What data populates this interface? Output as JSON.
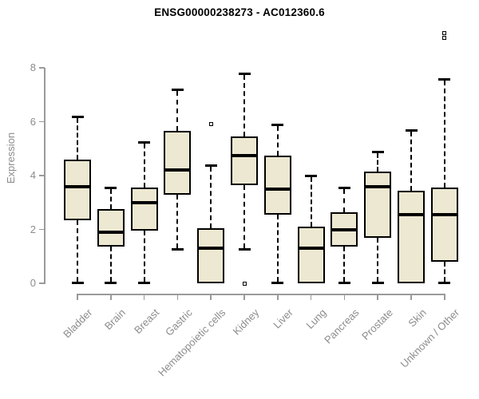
{
  "chart_data": {
    "type": "boxplot",
    "title": "ENSG00000238273 - AC012360.6",
    "ylabel": "Expression",
    "xlabel": "",
    "ylim": [
      0,
      8
    ],
    "yticks": [
      "0",
      "2",
      "4",
      "6",
      "8"
    ],
    "grid": false,
    "legend": null,
    "categories": [
      "Bladder",
      "Brain",
      "Breast",
      "Gastric",
      "Hematopoietic cells",
      "Kidney",
      "Liver",
      "Lung",
      "Pancreas",
      "Prostate",
      "Skin",
      "Unknown / Other"
    ],
    "series": [
      {
        "name": "Bladder",
        "whisker_low": 0,
        "q1": 2.35,
        "median": 3.6,
        "q3": 4.6,
        "whisker_high": 6.2,
        "outliers": []
      },
      {
        "name": "Brain",
        "whisker_low": 0,
        "q1": 1.35,
        "median": 1.9,
        "q3": 2.75,
        "whisker_high": 3.55,
        "outliers": []
      },
      {
        "name": "Breast",
        "whisker_low": 0,
        "q1": 1.95,
        "median": 3.0,
        "q3": 3.55,
        "whisker_high": 5.25,
        "outliers": []
      },
      {
        "name": "Gastric",
        "whisker_low": 1.25,
        "q1": 3.3,
        "median": 4.2,
        "q3": 5.65,
        "whisker_high": 7.2,
        "outliers": []
      },
      {
        "name": "Hematopoietic cells",
        "whisker_low": 0,
        "q1": 0,
        "median": 1.3,
        "q3": 2.05,
        "whisker_high": 4.4,
        "outliers": [
          5.9
        ]
      },
      {
        "name": "Kidney",
        "whisker_low": 1.25,
        "q1": 3.65,
        "median": 4.75,
        "q3": 5.45,
        "whisker_high": 7.8,
        "outliers": [
          0.0
        ]
      },
      {
        "name": "Liver",
        "whisker_low": 0,
        "q1": 2.55,
        "median": 3.5,
        "q3": 4.75,
        "whisker_high": 5.9,
        "outliers": []
      },
      {
        "name": "Lung",
        "whisker_low": 0,
        "q1": 0,
        "median": 1.3,
        "q3": 2.1,
        "whisker_high": 4.0,
        "outliers": []
      },
      {
        "name": "Pancreas",
        "whisker_low": 0,
        "q1": 1.35,
        "median": 2.0,
        "q3": 2.65,
        "whisker_high": 3.55,
        "outliers": []
      },
      {
        "name": "Prostate",
        "whisker_low": 0,
        "q1": 1.7,
        "median": 3.6,
        "q3": 4.15,
        "whisker_high": 4.9,
        "outliers": []
      },
      {
        "name": "Skin",
        "whisker_low": 0,
        "q1": 0,
        "median": 2.55,
        "q3": 3.45,
        "whisker_high": 5.7,
        "outliers": []
      },
      {
        "name": "Unknown / Other",
        "whisker_low": 0,
        "q1": 0.8,
        "median": 2.55,
        "q3": 3.55,
        "whisker_high": 7.6,
        "outliers": [
          9.1,
          9.3
        ]
      }
    ]
  },
  "colors": {
    "background": "#FFFFFF",
    "box_fill": "#EDE8D1",
    "box_border": "#000000",
    "median": "#000000",
    "axis_line": "#9A9A9A",
    "tick_label": "#8C8C8C",
    "title": "#000000"
  }
}
